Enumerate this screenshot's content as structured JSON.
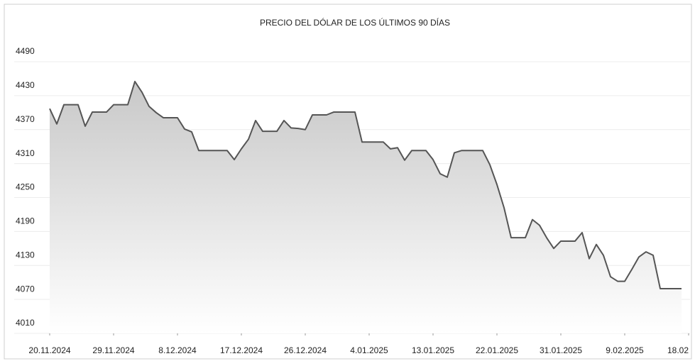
{
  "chart_data": {
    "type": "area",
    "title": "PRECIO DEL DÓLAR DE LOS ÚLTIMOS 90 DÍAS",
    "x": [
      "2024-11-20",
      "2024-11-21",
      "2024-11-22",
      "2024-11-23",
      "2024-11-24",
      "2024-11-25",
      "2024-11-26",
      "2024-11-27",
      "2024-11-28",
      "2024-11-29",
      "2024-11-30",
      "2024-12-01",
      "2024-12-02",
      "2024-12-03",
      "2024-12-04",
      "2024-12-05",
      "2024-12-06",
      "2024-12-07",
      "2024-12-08",
      "2024-12-09",
      "2024-12-10",
      "2024-12-11",
      "2024-12-12",
      "2024-12-13",
      "2024-12-14",
      "2024-12-15",
      "2024-12-16",
      "2024-12-17",
      "2024-12-18",
      "2024-12-19",
      "2024-12-20",
      "2024-12-21",
      "2024-12-22",
      "2024-12-23",
      "2024-12-24",
      "2024-12-25",
      "2024-12-26",
      "2024-12-27",
      "2024-12-28",
      "2024-12-29",
      "2024-12-30",
      "2024-12-31",
      "2025-01-01",
      "2025-01-02",
      "2025-01-03",
      "2025-01-04",
      "2025-01-05",
      "2025-01-06",
      "2025-01-07",
      "2025-01-08",
      "2025-01-09",
      "2025-01-10",
      "2025-01-11",
      "2025-01-12",
      "2025-01-13",
      "2025-01-14",
      "2025-01-15",
      "2025-01-16",
      "2025-01-17",
      "2025-01-18",
      "2025-01-19",
      "2025-01-20",
      "2025-01-21",
      "2025-01-22",
      "2025-01-23",
      "2025-01-24",
      "2025-01-25",
      "2025-01-26",
      "2025-01-27",
      "2025-01-28",
      "2025-01-29",
      "2025-01-30",
      "2025-01-31",
      "2025-02-01",
      "2025-02-02",
      "2025-02-03",
      "2025-02-04",
      "2025-02-05",
      "2025-02-06",
      "2025-02-07",
      "2025-02-08",
      "2025-02-09",
      "2025-02-10",
      "2025-02-11",
      "2025-02-12",
      "2025-02-13",
      "2025-02-14",
      "2025-02-15",
      "2025-02-16",
      "2025-02-17"
    ],
    "values": [
      4407,
      4380,
      4414,
      4414,
      4414,
      4376,
      4401,
      4401,
      4401,
      4414,
      4414,
      4414,
      4455,
      4436,
      4411,
      4400,
      4391,
      4391,
      4391,
      4371,
      4366,
      4333,
      4333,
      4333,
      4333,
      4333,
      4317,
      4336,
      4353,
      4386,
      4367,
      4367,
      4367,
      4386,
      4373,
      4372,
      4370,
      4396,
      4396,
      4396,
      4401,
      4401,
      4401,
      4401,
      4348,
      4348,
      4348,
      4348,
      4336,
      4338,
      4316,
      4333,
      4333,
      4333,
      4317,
      4292,
      4286,
      4329,
      4333,
      4333,
      4333,
      4333,
      4308,
      4273,
      4232,
      4179,
      4179,
      4179,
      4211,
      4201,
      4179,
      4160,
      4173,
      4173,
      4173,
      4188,
      4142,
      4167,
      4148,
      4110,
      4102,
      4102,
      4123,
      4145,
      4154,
      4148,
      4089,
      4089,
      4089,
      4089
    ],
    "color": "#555555",
    "ylim": [
      4010,
      4490
    ],
    "yticks": [
      4010,
      4070,
      4130,
      4190,
      4250,
      4310,
      4370,
      4430,
      4490
    ],
    "xticks": [
      {
        "value": "2024-11-20",
        "label": "20.11.2024"
      },
      {
        "value": "2024-11-29",
        "label": "29.11.2024"
      },
      {
        "value": "2024-12-08",
        "label": "8.12.2024"
      },
      {
        "value": "2024-12-17",
        "label": "17.12.2024"
      },
      {
        "value": "2024-12-26",
        "label": "26.12.2024"
      },
      {
        "value": "2025-01-04",
        "label": "4.01.2025"
      },
      {
        "value": "2025-01-13",
        "label": "13.01.2025"
      },
      {
        "value": "2025-01-22",
        "label": "22.01.2025"
      },
      {
        "value": "2025-01-31",
        "label": "31.01.2025"
      },
      {
        "value": "2025-02-09",
        "label": "9.02.2025"
      },
      {
        "value": "2025-02-18",
        "label": "18.02"
      }
    ],
    "grid": true
  }
}
